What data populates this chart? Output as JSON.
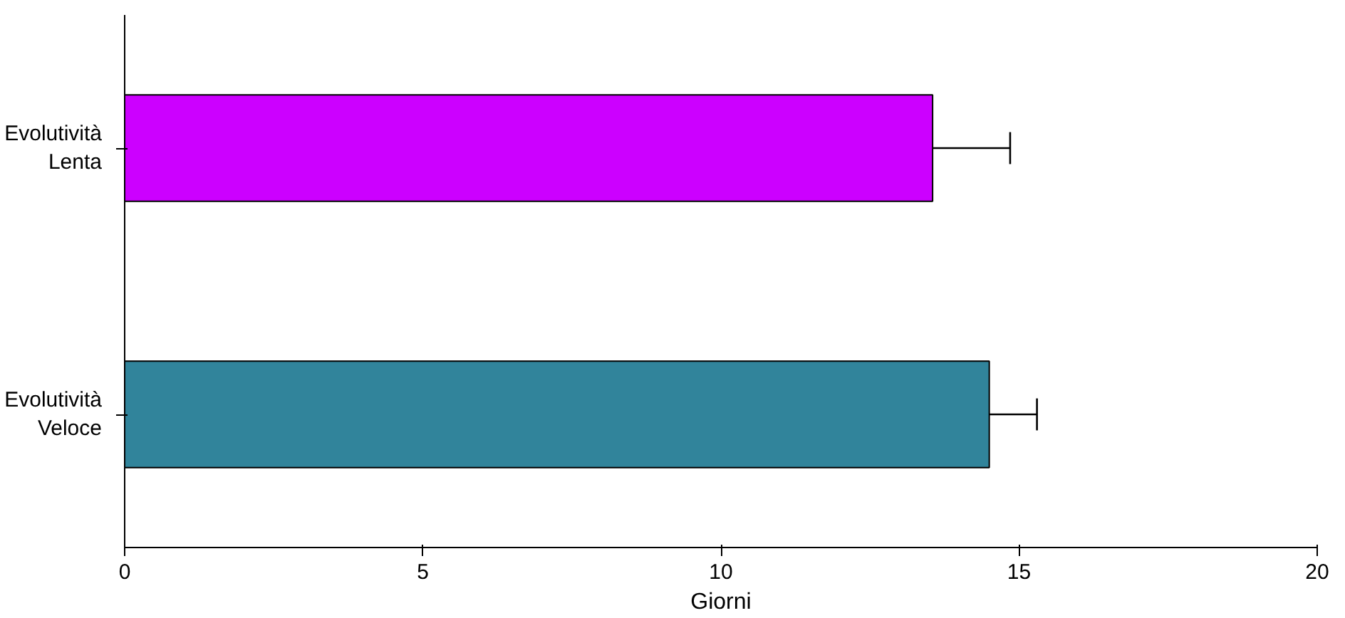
{
  "chart_data": {
    "type": "bar",
    "orientation": "horizontal",
    "xlabel": "Giorni",
    "categories": [
      "Evolutività\nLenta",
      "Evolutività\nVeloce"
    ],
    "values": [
      13.55,
      14.5
    ],
    "colors": [
      "#cc00ff",
      "#31849b"
    ],
    "errors": [
      1.3,
      0.8
    ],
    "xlim": [
      0,
      20
    ],
    "xticks": [
      0,
      5,
      10,
      15,
      20
    ],
    "grid": false
  }
}
